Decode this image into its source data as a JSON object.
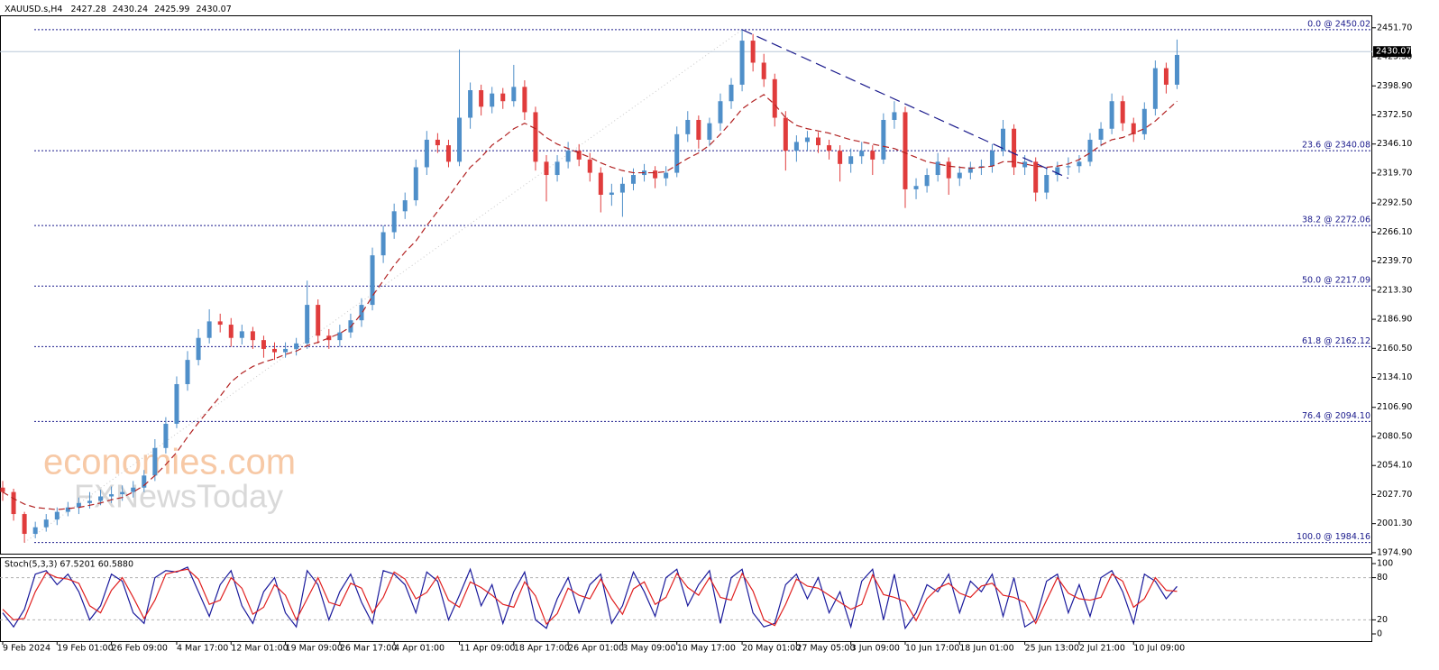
{
  "watermark": [
    "economies.com",
    "FXNewsToday"
  ],
  "chart_data": [
    {
      "type": "candlestick",
      "title": "XAUUSD.s,H4",
      "quote": [
        2427.28,
        2430.24,
        2425.99,
        2430.07
      ],
      "up_color": "#4f8fc9",
      "down_color": "#e03c3c",
      "categories": [
        "9 Feb 2024",
        null,
        null,
        null,
        null,
        "19 Feb 01:00",
        null,
        null,
        null,
        null,
        "26 Feb 09:00",
        null,
        null,
        null,
        null,
        null,
        "4 Mar 17:00",
        null,
        null,
        null,
        null,
        "12 Mar 01:00",
        null,
        null,
        null,
        null,
        "19 Mar 09:00",
        null,
        null,
        null,
        null,
        "26 Mar 17:00",
        null,
        null,
        null,
        null,
        "4 Apr 01:00",
        null,
        null,
        null,
        null,
        null,
        "11 Apr 09:00",
        null,
        null,
        null,
        null,
        "18 Apr 17:00",
        null,
        null,
        null,
        null,
        "26 Apr 01:00",
        null,
        null,
        null,
        null,
        "3 May 09:00",
        null,
        null,
        null,
        null,
        "10 May 17:00",
        null,
        null,
        null,
        null,
        null,
        "20 May 01:00",
        null,
        null,
        null,
        null,
        "27 May 05:00",
        null,
        null,
        null,
        null,
        "3 Jun 09:00",
        null,
        null,
        null,
        null,
        "10 Jun 17:00",
        null,
        null,
        null,
        null,
        "18 Jun 01:00",
        null,
        null,
        null,
        null,
        null,
        "25 Jun 13:00",
        null,
        null,
        null,
        null,
        "2 Jul 21:00",
        null,
        null,
        null,
        null,
        "10 Jul 09:00",
        null,
        null,
        null,
        null
      ],
      "ohlc": [
        [
          2034,
          2040,
          2022,
          2030
        ],
        [
          2030,
          2033,
          2004,
          2010
        ],
        [
          2010,
          2012,
          1984,
          1992
        ],
        [
          1992,
          2003,
          1988,
          1998
        ],
        [
          1998,
          2010,
          1994,
          2005
        ],
        [
          2005,
          2016,
          2000,
          2012
        ],
        [
          2012,
          2021,
          2008,
          2016
        ],
        [
          2016,
          2025,
          2010,
          2020
        ],
        [
          2020,
          2030,
          2015,
          2022
        ],
        [
          2022,
          2032,
          2018,
          2026
        ],
        [
          2026,
          2035,
          2020,
          2028
        ],
        [
          2028,
          2036,
          2022,
          2030
        ],
        [
          2030,
          2040,
          2025,
          2034
        ],
        [
          2034,
          2050,
          2030,
          2045
        ],
        [
          2045,
          2078,
          2040,
          2070
        ],
        [
          2070,
          2098,
          2065,
          2092
        ],
        [
          2092,
          2135,
          2088,
          2128
        ],
        [
          2128,
          2158,
          2122,
          2150
        ],
        [
          2150,
          2178,
          2145,
          2170
        ],
        [
          2170,
          2196,
          2165,
          2185
        ],
        [
          2185,
          2192,
          2175,
          2182
        ],
        [
          2182,
          2188,
          2162,
          2170
        ],
        [
          2170,
          2182,
          2164,
          2176
        ],
        [
          2176,
          2180,
          2160,
          2168
        ],
        [
          2168,
          2172,
          2152,
          2160
        ],
        [
          2160,
          2166,
          2150,
          2157
        ],
        [
          2157,
          2166,
          2152,
          2160
        ],
        [
          2160,
          2170,
          2154,
          2165
        ],
        [
          2165,
          2222,
          2160,
          2200
        ],
        [
          2200,
          2205,
          2165,
          2172
        ],
        [
          2172,
          2178,
          2160,
          2168
        ],
        [
          2168,
          2182,
          2162,
          2175
        ],
        [
          2175,
          2192,
          2170,
          2186
        ],
        [
          2186,
          2206,
          2180,
          2200
        ],
        [
          2200,
          2252,
          2195,
          2245
        ],
        [
          2245,
          2272,
          2238,
          2266
        ],
        [
          2266,
          2292,
          2260,
          2285
        ],
        [
          2285,
          2302,
          2278,
          2295
        ],
        [
          2295,
          2332,
          2290,
          2325
        ],
        [
          2325,
          2358,
          2318,
          2350
        ],
        [
          2350,
          2356,
          2338,
          2345
        ],
        [
          2345,
          2350,
          2325,
          2330
        ],
        [
          2330,
          2432,
          2326,
          2370
        ],
        [
          2370,
          2402,
          2360,
          2395
        ],
        [
          2395,
          2400,
          2372,
          2380
        ],
        [
          2380,
          2398,
          2374,
          2392
        ],
        [
          2392,
          2397,
          2378,
          2385
        ],
        [
          2385,
          2418,
          2380,
          2398
        ],
        [
          2398,
          2404,
          2368,
          2375
        ],
        [
          2375,
          2380,
          2322,
          2330
        ],
        [
          2330,
          2336,
          2294,
          2318
        ],
        [
          2318,
          2336,
          2312,
          2330
        ],
        [
          2330,
          2348,
          2324,
          2340
        ],
        [
          2340,
          2346,
          2326,
          2332
        ],
        [
          2332,
          2338,
          2312,
          2320
        ],
        [
          2320,
          2325,
          2284,
          2300
        ],
        [
          2300,
          2310,
          2290,
          2302
        ],
        [
          2302,
          2316,
          2280,
          2310
        ],
        [
          2310,
          2324,
          2304,
          2318
        ],
        [
          2318,
          2328,
          2312,
          2322
        ],
        [
          2322,
          2326,
          2306,
          2315
        ],
        [
          2315,
          2326,
          2308,
          2320
        ],
        [
          2320,
          2362,
          2316,
          2355
        ],
        [
          2355,
          2376,
          2348,
          2368
        ],
        [
          2368,
          2372,
          2342,
          2350
        ],
        [
          2350,
          2370,
          2344,
          2365
        ],
        [
          2365,
          2392,
          2358,
          2385
        ],
        [
          2385,
          2406,
          2378,
          2400
        ],
        [
          2400,
          2450,
          2394,
          2440
        ],
        [
          2440,
          2446,
          2412,
          2420
        ],
        [
          2420,
          2428,
          2398,
          2405
        ],
        [
          2405,
          2410,
          2362,
          2370
        ],
        [
          2370,
          2376,
          2322,
          2340
        ],
        [
          2340,
          2354,
          2330,
          2348
        ],
        [
          2348,
          2358,
          2340,
          2352
        ],
        [
          2352,
          2357,
          2338,
          2345
        ],
        [
          2345,
          2350,
          2332,
          2340
        ],
        [
          2340,
          2345,
          2312,
          2328
        ],
        [
          2328,
          2342,
          2320,
          2335
        ],
        [
          2335,
          2348,
          2328,
          2340
        ],
        [
          2340,
          2345,
          2318,
          2332
        ],
        [
          2332,
          2374,
          2328,
          2368
        ],
        [
          2368,
          2385,
          2360,
          2375
        ],
        [
          2375,
          2380,
          2288,
          2305
        ],
        [
          2305,
          2315,
          2296,
          2308
        ],
        [
          2308,
          2324,
          2302,
          2318
        ],
        [
          2318,
          2338,
          2312,
          2330
        ],
        [
          2330,
          2334,
          2300,
          2315
        ],
        [
          2315,
          2326,
          2308,
          2320
        ],
        [
          2320,
          2330,
          2314,
          2325
        ],
        [
          2325,
          2332,
          2318,
          2326
        ],
        [
          2326,
          2346,
          2320,
          2340
        ],
        [
          2340,
          2368,
          2335,
          2360
        ],
        [
          2360,
          2364,
          2318,
          2325
        ],
        [
          2325,
          2336,
          2318,
          2330
        ],
        [
          2330,
          2334,
          2294,
          2302
        ],
        [
          2302,
          2324,
          2296,
          2318
        ],
        [
          2318,
          2330,
          2312,
          2325
        ],
        [
          2325,
          2334,
          2318,
          2326
        ],
        [
          2326,
          2336,
          2320,
          2330
        ],
        [
          2330,
          2356,
          2326,
          2350
        ],
        [
          2350,
          2366,
          2344,
          2360
        ],
        [
          2360,
          2392,
          2355,
          2385
        ],
        [
          2385,
          2390,
          2358,
          2365
        ],
        [
          2365,
          2370,
          2348,
          2355
        ],
        [
          2355,
          2384,
          2350,
          2378
        ],
        [
          2378,
          2422,
          2372,
          2415
        ],
        [
          2415,
          2420,
          2392,
          2400
        ],
        [
          2400,
          2441,
          2396,
          2427
        ]
      ],
      "ma": {
        "color": "#b22222",
        "values": [
          2030,
          2024,
          2019,
          2016,
          2015,
          2014,
          2015,
          2016,
          2018,
          2020,
          2023,
          2025,
          2030,
          2036,
          2045,
          2055,
          2066,
          2080,
          2093,
          2105,
          2117,
          2130,
          2138,
          2144,
          2148,
          2151,
          2155,
          2158,
          2163,
          2166,
          2170,
          2174,
          2180,
          2192,
          2208,
          2222,
          2236,
          2248,
          2258,
          2272,
          2285,
          2298,
          2312,
          2325,
          2334,
          2345,
          2352,
          2360,
          2365,
          2360,
          2352,
          2346,
          2342,
          2338,
          2334,
          2329,
          2325,
          2322,
          2320,
          2320,
          2320,
          2321,
          2327,
          2333,
          2338,
          2345,
          2355,
          2366,
          2378,
          2385,
          2391,
          2382,
          2370,
          2363,
          2360,
          2358,
          2356,
          2353,
          2350,
          2348,
          2346,
          2344,
          2342,
          2338,
          2334,
          2330,
          2328,
          2326,
          2325,
          2324,
          2325,
          2326,
          2330,
          2330,
          2328,
          2326,
          2325,
          2326,
          2328,
          2332,
          2338,
          2345,
          2350,
          2352,
          2356,
          2360,
          2367,
          2376,
          2385
        ]
      },
      "ylim": [
        1974,
        2463
      ],
      "yticks": [
        {
          "value": 2451.7,
          "label": "2451.70"
        },
        {
          "value": 2425.3,
          "label": "2425.30"
        },
        {
          "value": 2398.9,
          "label": "2398.90"
        },
        {
          "value": 2372.5,
          "label": "2372.50"
        },
        {
          "value": 2346.1,
          "label": "2346.10"
        },
        {
          "value": 2319.7,
          "label": "2319.70"
        },
        {
          "value": 2292.5,
          "label": "2292.50"
        },
        {
          "value": 2266.1,
          "label": "2266.10"
        },
        {
          "value": 2239.7,
          "label": "2239.70"
        },
        {
          "value": 2213.3,
          "label": "2213.30"
        },
        {
          "value": 2186.9,
          "label": "2186.90"
        },
        {
          "value": 2160.5,
          "label": "2160.50"
        },
        {
          "value": 2134.1,
          "label": "2134.10"
        },
        {
          "value": 2106.9,
          "label": "2106.90"
        },
        {
          "value": 2080.5,
          "label": "2080.50"
        },
        {
          "value": 2054.1,
          "label": "2054.10"
        },
        {
          "value": 2027.7,
          "label": "2027.70"
        },
        {
          "value": 2001.3,
          "label": "2001.30"
        },
        {
          "value": 1974.9,
          "label": "1974.90"
        }
      ],
      "fib_levels": [
        {
          "value": 2450.02,
          "label": "0.0 @ 2450.02"
        },
        {
          "value": 2340.08,
          "label": "23.6 @ 2340.08"
        },
        {
          "value": 2272.06,
          "label": "38.2 @ 2272.06"
        },
        {
          "value": 2217.09,
          "label": "50.0 @ 2217.09"
        },
        {
          "value": 2162.12,
          "label": "61.8 @ 2162.12"
        },
        {
          "value": 2094.1,
          "label": "76.4 @ 2094.10"
        },
        {
          "value": 1984.16,
          "label": "100.0 @ 1984.16"
        }
      ],
      "fib_color": "#1a1a8c",
      "fib_line": {
        "x": [
          2,
          68
        ],
        "y": [
          1984.16,
          2450.02
        ]
      },
      "trendline": {
        "x": [
          68,
          98
        ],
        "y": [
          2450,
          2315
        ],
        "color": "#1a1a8c"
      },
      "current_price": 2430.07
    },
    {
      "type": "line",
      "title": "Stoch(5,3,3) 67.5201 60.5880",
      "ylim": [
        0,
        100
      ],
      "yticks": [
        0,
        20,
        80,
        100
      ],
      "levels": [
        20,
        80
      ],
      "series": [
        {
          "color": "#1a1a9c",
          "values": [
            30,
            10,
            35,
            85,
            90,
            70,
            85,
            60,
            20,
            40,
            85,
            75,
            30,
            15,
            80,
            90,
            88,
            95,
            60,
            25,
            70,
            90,
            40,
            15,
            60,
            80,
            30,
            10,
            90,
            70,
            20,
            60,
            85,
            45,
            15,
            90,
            85,
            70,
            30,
            88,
            75,
            20,
            55,
            92,
            40,
            70,
            15,
            60,
            88,
            20,
            8,
            50,
            80,
            30,
            70,
            85,
            15,
            40,
            88,
            60,
            25,
            80,
            92,
            40,
            70,
            90,
            15,
            80,
            92,
            30,
            10,
            15,
            70,
            85,
            50,
            80,
            30,
            60,
            10,
            75,
            92,
            20,
            85,
            8,
            30,
            70,
            60,
            85,
            30,
            75,
            60,
            85,
            25,
            80,
            10,
            20,
            75,
            85,
            30,
            70,
            25,
            80,
            90,
            60,
            15,
            85,
            75,
            50,
            67.5201
          ]
        },
        {
          "color": "#e02020",
          "values": [
            35,
            20,
            22,
            60,
            87,
            80,
            78,
            72,
            40,
            30,
            62,
            80,
            52,
            22,
            48,
            85,
            89,
            92,
            78,
            42,
            48,
            80,
            65,
            28,
            38,
            70,
            55,
            20,
            50,
            80,
            45,
            40,
            72,
            65,
            30,
            52,
            88,
            78,
            50,
            59,
            82,
            48,
            38,
            74,
            66,
            55,
            42,
            38,
            74,
            54,
            14,
            29,
            65,
            55,
            50,
            78,
            50,
            28,
            64,
            74,
            42,
            52,
            86,
            66,
            55,
            80,
            52,
            48,
            86,
            61,
            20,
            12,
            42,
            78,
            68,
            65,
            55,
            45,
            35,
            42,
            84,
            56,
            52,
            46,
            19,
            50,
            65,
            72,
            58,
            52,
            68,
            72,
            55,
            52,
            45,
            15,
            48,
            80,
            58,
            50,
            48,
            52,
            85,
            75,
            38,
            50,
            80,
            62,
            60.588
          ]
        }
      ]
    }
  ]
}
